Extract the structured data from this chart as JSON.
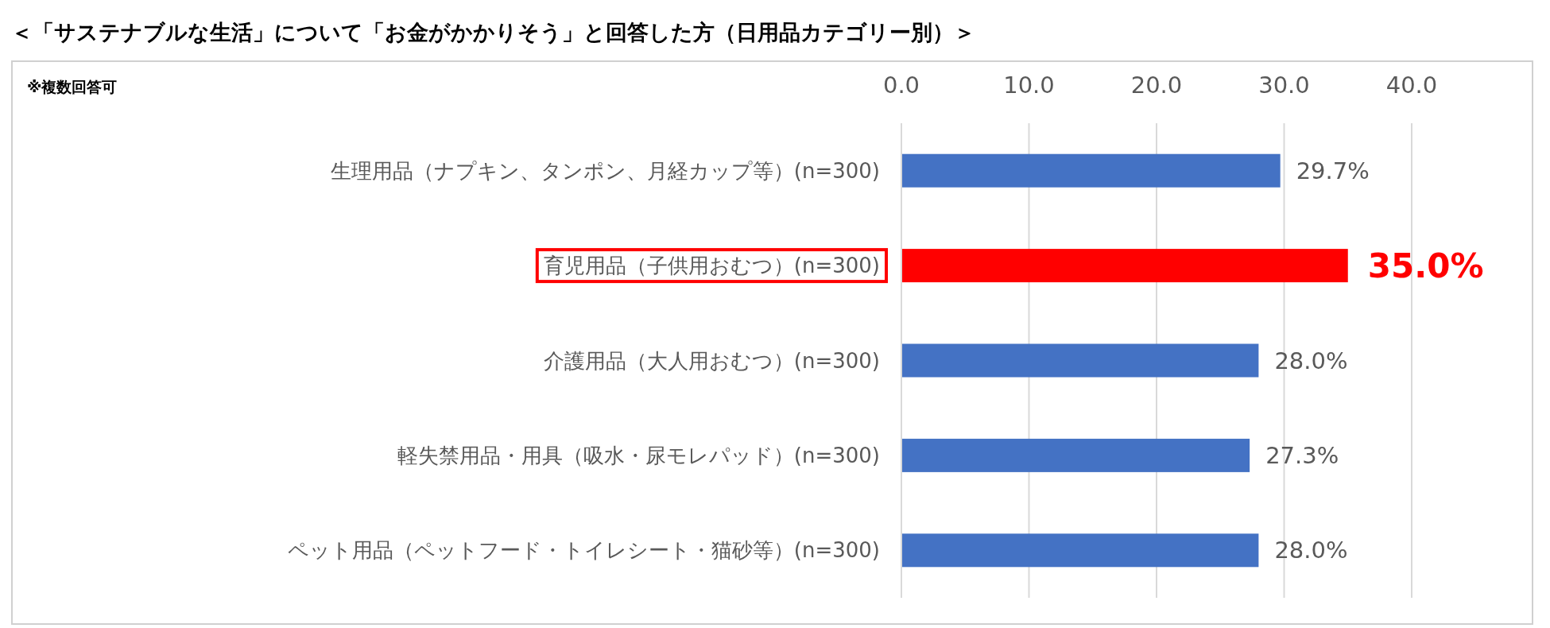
{
  "chart_data": {
    "type": "bar",
    "orientation": "horizontal",
    "title": "＜「サステナブルな生活」について「お金がかかりそう」と回答した方（日用品カテゴリー別）＞",
    "annotations": [
      "※複数回答可"
    ],
    "categories": [
      "生理用品（ナプキン、タンポン、月経カップ等）(n=300)",
      "育児用品（子供用おむつ）(n=300)",
      "介護用品（大人用おむつ）(n=300)",
      "軽失禁用品・用具（吸水・尿モレパッド）(n=300)",
      "ペット用品（ペットフード・トイレシート・猫砂等）(n=300)"
    ],
    "values": [
      29.7,
      35.0,
      28.0,
      27.3,
      28.0
    ],
    "colors": [
      "#4472c4",
      "#ff0000",
      "#4472c4",
      "#4472c4",
      "#4472c4"
    ],
    "value_labels": [
      "29.7%",
      "35.0%",
      "28.0%",
      "27.3%",
      "28.0%"
    ],
    "xlim": [
      0,
      40
    ],
    "xticks": [
      {
        "value": 0,
        "label": "0.0"
      },
      {
        "value": 10,
        "label": "10.0"
      },
      {
        "value": 20,
        "label": "20.0"
      },
      {
        "value": 30,
        "label": "30.0"
      },
      {
        "value": 40,
        "label": "40.0"
      }
    ],
    "grid": "x"
  }
}
